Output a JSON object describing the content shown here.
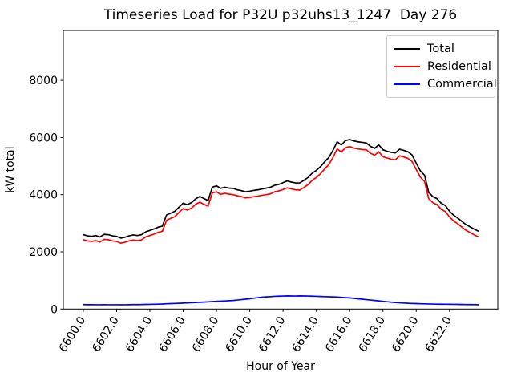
{
  "chart_data": {
    "type": "line",
    "title": "Timeseries Load for P32U p32uhs13_1247  Day 276",
    "xlabel": "Hour of Year",
    "ylabel": "kW total",
    "xlim": [
      6598.8,
      6624.9
    ],
    "ylim": [
      0,
      9742
    ],
    "grid": false,
    "legend_position": "upper right",
    "x_ticks": [
      6600,
      6602,
      6604,
      6606,
      6608,
      6610,
      6612,
      6614,
      6616,
      6618,
      6620,
      6622
    ],
    "x_tick_labels": [
      "6600.0",
      "6602.0",
      "6604.0",
      "6606.0",
      "6608.0",
      "6610.0",
      "6612.0",
      "6614.0",
      "6616.0",
      "6618.0",
      "6620.0",
      "6622.0"
    ],
    "y_ticks": [
      0,
      2000,
      4000,
      6000,
      8000
    ],
    "y_tick_labels": [
      "0",
      "2000",
      "4000",
      "6000",
      "8000"
    ],
    "x": [
      6600.0,
      6600.25,
      6600.5,
      6600.75,
      6601.0,
      6601.25,
      6601.5,
      6601.75,
      6602.0,
      6602.25,
      6602.5,
      6602.75,
      6603.0,
      6603.25,
      6603.5,
      6603.75,
      6604.0,
      6604.25,
      6604.5,
      6604.75,
      6605.0,
      6605.25,
      6605.5,
      6605.75,
      6606.0,
      6606.25,
      6606.5,
      6606.75,
      6607.0,
      6607.25,
      6607.5,
      6607.75,
      6608.0,
      6608.25,
      6608.5,
      6608.75,
      6609.0,
      6609.25,
      6609.5,
      6609.75,
      6610.0,
      6610.25,
      6610.5,
      6610.75,
      6611.0,
      6611.25,
      6611.5,
      6611.75,
      6612.0,
      6612.25,
      6612.5,
      6612.75,
      6613.0,
      6613.25,
      6613.5,
      6613.75,
      6614.0,
      6614.25,
      6614.5,
      6614.75,
      6615.0,
      6615.25,
      6615.5,
      6615.75,
      6616.0,
      6616.25,
      6616.5,
      6616.75,
      6617.0,
      6617.25,
      6617.5,
      6617.75,
      6618.0,
      6618.25,
      6618.5,
      6618.75,
      6619.0,
      6619.25,
      6619.5,
      6619.75,
      6620.0,
      6620.25,
      6620.5,
      6620.75,
      6621.0,
      6621.25,
      6621.5,
      6621.75,
      6622.0,
      6622.25,
      6622.5,
      6622.75,
      6623.0,
      6623.25,
      6623.5,
      6623.75
    ],
    "series": [
      {
        "name": "Total",
        "color": "#000000",
        "values": [
          2600,
          2560,
          2540,
          2570,
          2520,
          2610,
          2600,
          2560,
          2540,
          2480,
          2510,
          2560,
          2590,
          2570,
          2600,
          2700,
          2750,
          2800,
          2860,
          2900,
          3290,
          3350,
          3420,
          3560,
          3700,
          3650,
          3720,
          3850,
          3940,
          3860,
          3800,
          4260,
          4310,
          4220,
          4260,
          4230,
          4220,
          4170,
          4140,
          4100,
          4120,
          4150,
          4170,
          4200,
          4230,
          4260,
          4330,
          4360,
          4420,
          4480,
          4440,
          4410,
          4410,
          4500,
          4600,
          4750,
          4850,
          4980,
          5150,
          5300,
          5550,
          5850,
          5740,
          5890,
          5930,
          5880,
          5850,
          5830,
          5810,
          5690,
          5620,
          5740,
          5570,
          5520,
          5480,
          5460,
          5590,
          5550,
          5500,
          5390,
          5100,
          4830,
          4680,
          4080,
          3930,
          3860,
          3700,
          3620,
          3420,
          3280,
          3180,
          3060,
          2950,
          2870,
          2790,
          2720
        ]
      },
      {
        "name": "Residential",
        "color": "#ff0000",
        "values": [
          2425,
          2385,
          2365,
          2395,
          2345,
          2435,
          2425,
          2385,
          2365,
          2305,
          2335,
          2385,
          2410,
          2390,
          2420,
          2520,
          2570,
          2620,
          2680,
          2720,
          3100,
          3170,
          3230,
          3380,
          3510,
          3460,
          3530,
          3660,
          3740,
          3660,
          3600,
          4060,
          4100,
          4010,
          4050,
          4020,
          4000,
          3960,
          3930,
          3890,
          3900,
          3930,
          3950,
          3980,
          4000,
          4030,
          4100,
          4130,
          4180,
          4240,
          4200,
          4170,
          4160,
          4250,
          4350,
          4500,
          4600,
          4730,
          4900,
          5050,
          5300,
          5600,
          5490,
          5640,
          5680,
          5630,
          5600,
          5580,
          5570,
          5450,
          5380,
          5500,
          5330,
          5280,
          5240,
          5220,
          5360,
          5320,
          5270,
          5160,
          4880,
          4610,
          4460,
          3860,
          3720,
          3650,
          3490,
          3410,
          3220,
          3080,
          2980,
          2860,
          2750,
          2670,
          2590,
          2520
        ]
      },
      {
        "name": "Commercial",
        "color": "#0000ff",
        "values": [
          155,
          153,
          152,
          150,
          150,
          152,
          151,
          150,
          150,
          148,
          150,
          152,
          155,
          156,
          158,
          162,
          165,
          168,
          172,
          176,
          185,
          190,
          196,
          202,
          208,
          214,
          220,
          228,
          236,
          244,
          252,
          260,
          268,
          276,
          284,
          292,
          300,
          315,
          330,
          345,
          360,
          380,
          400,
          415,
          425,
          435,
          445,
          450,
          455,
          460,
          458,
          455,
          460,
          458,
          455,
          450,
          445,
          440,
          435,
          430,
          425,
          420,
          410,
          400,
          390,
          375,
          360,
          345,
          330,
          315,
          300,
          285,
          270,
          255,
          240,
          228,
          218,
          210,
          202,
          196,
          190,
          186,
          182,
          178,
          175,
          172,
          170,
          168,
          166,
          164,
          162,
          160,
          158,
          156,
          154,
          152
        ]
      }
    ]
  }
}
